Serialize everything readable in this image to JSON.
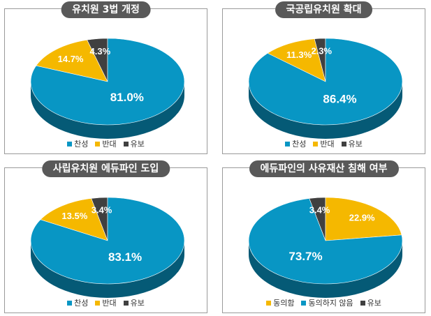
{
  "colors": {
    "accent_blue": "#0896C4",
    "accent_yellow": "#F5B800",
    "accent_dark": "#404040"
  },
  "chart_data": [
    {
      "type": "pie",
      "title": "유치원 3법 개정",
      "categories": [
        "찬성",
        "반대",
        "유보"
      ],
      "values": [
        81.0,
        14.7,
        4.3
      ],
      "labels": [
        "81.0%",
        "14.7%",
        "4.3%"
      ],
      "colors": [
        "#0896C4",
        "#F5B800",
        "#404040"
      ],
      "legend_position": "bottom"
    },
    {
      "type": "pie",
      "title": "국공립유치원 확대",
      "categories": [
        "찬성",
        "반대",
        "유보"
      ],
      "values": [
        86.4,
        11.3,
        2.3
      ],
      "labels": [
        "86.4%",
        "11.3%",
        "2.3%"
      ],
      "colors": [
        "#0896C4",
        "#F5B800",
        "#404040"
      ],
      "legend_position": "bottom"
    },
    {
      "type": "pie",
      "title": "사립유치원 에듀파인 도입",
      "categories": [
        "찬성",
        "반대",
        "유보"
      ],
      "values": [
        83.1,
        13.5,
        3.4
      ],
      "labels": [
        "83.1%",
        "13.5%",
        "3.4%"
      ],
      "colors": [
        "#0896C4",
        "#F5B800",
        "#404040"
      ],
      "legend_position": "bottom"
    },
    {
      "type": "pie",
      "title": "에듀파인의 사유재산 침해 여부",
      "categories": [
        "동의함",
        "동의하지 않음",
        "유보"
      ],
      "values": [
        22.9,
        73.7,
        3.4
      ],
      "labels": [
        "22.9%",
        "73.7%",
        "3.4%"
      ],
      "colors": [
        "#F5B800",
        "#0896C4",
        "#404040"
      ],
      "legend_position": "bottom"
    }
  ]
}
